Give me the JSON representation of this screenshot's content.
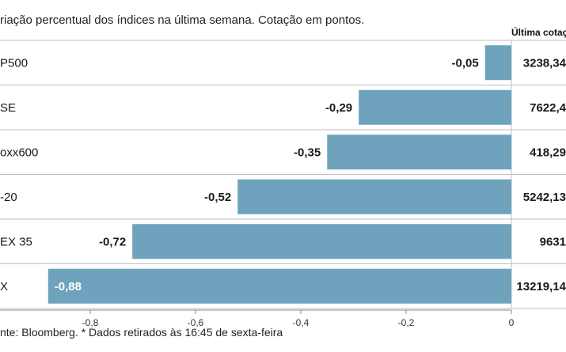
{
  "subtitle": "riação percentual dos índices na última semana. Cotação em pontos.",
  "value_column_header": "Última cotaç",
  "source": "nte: Bloomberg.  * Dados retirados às 16:45 de sexta-feira",
  "colors": {
    "bar": "#6fa3bd",
    "grid": "#bfbfbf",
    "text": "#1a1a1a",
    "bar_label_inside": "#ffffff"
  },
  "chart_data": {
    "type": "bar",
    "orientation": "horizontal",
    "title": "",
    "xlabel": "",
    "ylabel": "",
    "xlim": [
      -0.98,
      0
    ],
    "x_ticks": [
      -0.8,
      -0.6,
      -0.4,
      -0.2,
      0
    ],
    "x_tick_labels": [
      "-0,8",
      "-0,6",
      "-0,4",
      "-0,2",
      "0"
    ],
    "grid": false,
    "categories": [
      "P500",
      "SE",
      "oxx600",
      "-20",
      "EX 35",
      "X"
    ],
    "values": [
      -0.05,
      -0.29,
      -0.35,
      -0.52,
      -0.72,
      -0.88
    ],
    "value_labels": [
      "-0,05",
      "-0,29",
      "-0,35",
      "-0,52",
      "-0,72",
      "-0,88"
    ],
    "last_quote": [
      "3238,34",
      "7622,4",
      "418,29",
      "5242,13",
      "9631",
      "13219,14"
    ]
  }
}
